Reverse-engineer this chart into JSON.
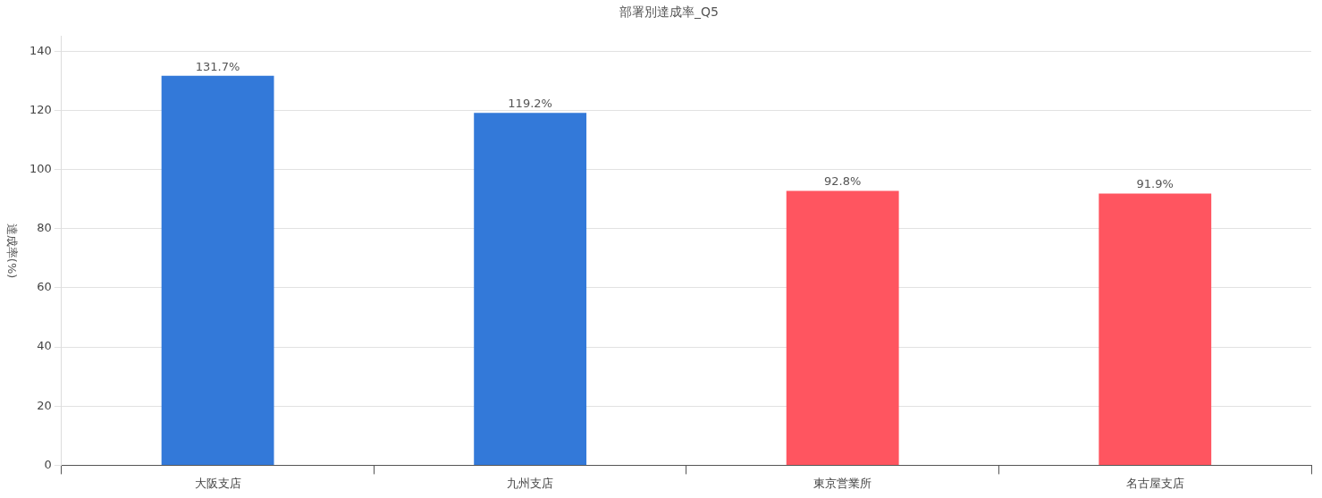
{
  "chart_data": {
    "type": "bar",
    "title": "部署別達成率_Q5",
    "ylabel": "達成率(%)",
    "categories": [
      "大阪支店",
      "九州支店",
      "東京営業所",
      "名古屋支店"
    ],
    "values": [
      131.7,
      119.2,
      92.8,
      91.9
    ],
    "colors": [
      "#3379d9",
      "#3379d9",
      "#ff5560",
      "#ff5560"
    ],
    "value_labels": [
      "131.7%",
      "119.2%",
      "92.8%",
      "91.9%"
    ],
    "ylim": [
      0,
      145
    ],
    "yticks": [
      0,
      20,
      40,
      60,
      80,
      100,
      120,
      140
    ],
    "grid": "y",
    "legend": false
  }
}
